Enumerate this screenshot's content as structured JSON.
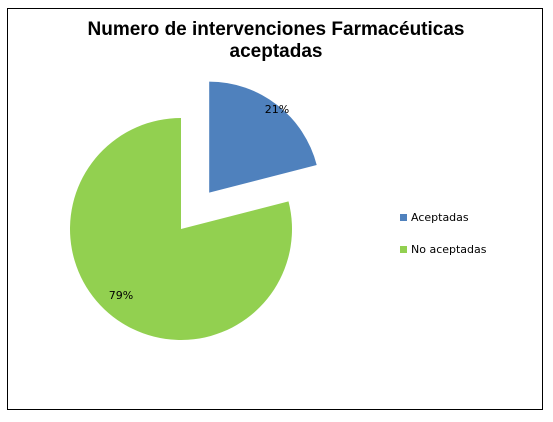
{
  "chart_data": {
    "type": "pie",
    "title_lines": [
      "Numero de intervenciones Farmacéuticas",
      "aceptadas"
    ],
    "categories": [
      "Aceptadas",
      "No aceptadas"
    ],
    "values": [
      21,
      79
    ],
    "labels": [
      "21%",
      "79%"
    ],
    "colors": [
      "#4F81BD",
      "#92D050"
    ],
    "exploded": [
      true,
      false
    ],
    "legend_position": "right"
  }
}
